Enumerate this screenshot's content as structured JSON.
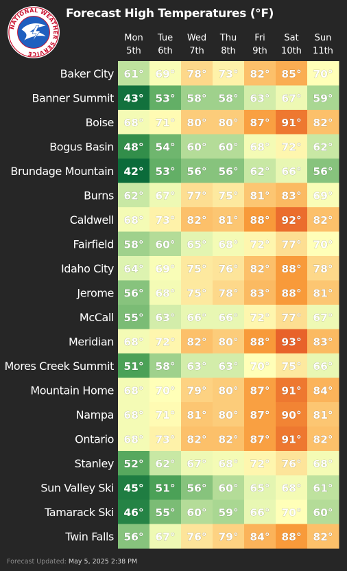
{
  "header": {
    "title": "Forecast High Temperatures (°F)",
    "logo_text": "NATIONAL WEATHER SERVICE"
  },
  "footer": {
    "label": "Forecast Updated:",
    "value": "May 5, 2025 2:38 PM"
  },
  "chart_data": {
    "type": "heatmap",
    "title": "Forecast High Temperatures (°F)",
    "unit": "°",
    "columns": [
      {
        "day": "Mon",
        "date": "5th"
      },
      {
        "day": "Tue",
        "date": "6th"
      },
      {
        "day": "Wed",
        "date": "7th"
      },
      {
        "day": "Thu",
        "date": "8th"
      },
      {
        "day": "Fri",
        "date": "9th"
      },
      {
        "day": "Sat",
        "date": "10th"
      },
      {
        "day": "Sun",
        "date": "11th"
      }
    ],
    "rows": [
      {
        "name": "Baker City",
        "values": [
          61,
          69,
          78,
          73,
          82,
          85,
          70
        ]
      },
      {
        "name": "Banner Summit",
        "values": [
          43,
          53,
          58,
          58,
          63,
          67,
          59
        ]
      },
      {
        "name": "Boise",
        "values": [
          68,
          71,
          80,
          80,
          87,
          91,
          82
        ]
      },
      {
        "name": "Bogus Basin",
        "values": [
          48,
          54,
          60,
          60,
          68,
          72,
          62
        ]
      },
      {
        "name": "Brundage Mountain",
        "values": [
          42,
          53,
          56,
          56,
          62,
          66,
          56
        ]
      },
      {
        "name": "Burns",
        "values": [
          62,
          67,
          77,
          75,
          81,
          83,
          69
        ]
      },
      {
        "name": "Caldwell",
        "values": [
          68,
          73,
          82,
          81,
          88,
          92,
          82
        ]
      },
      {
        "name": "Fairfield",
        "values": [
          58,
          60,
          65,
          68,
          72,
          77,
          70
        ]
      },
      {
        "name": "Idaho City",
        "values": [
          64,
          69,
          75,
          76,
          82,
          88,
          78
        ]
      },
      {
        "name": "Jerome",
        "values": [
          56,
          68,
          75,
          78,
          83,
          88,
          81
        ]
      },
      {
        "name": "McCall",
        "values": [
          55,
          63,
          66,
          66,
          72,
          77,
          67
        ]
      },
      {
        "name": "Meridian",
        "values": [
          68,
          72,
          82,
          80,
          88,
          93,
          83
        ]
      },
      {
        "name": "Mores Creek Summit",
        "values": [
          51,
          58,
          63,
          63,
          70,
          75,
          66
        ]
      },
      {
        "name": "Mountain Home",
        "values": [
          68,
          70,
          79,
          80,
          87,
          91,
          84
        ]
      },
      {
        "name": "Nampa",
        "values": [
          68,
          71,
          81,
          80,
          87,
          90,
          81
        ]
      },
      {
        "name": "Ontario",
        "values": [
          68,
          73,
          82,
          82,
          87,
          91,
          82
        ]
      },
      {
        "name": "Stanley",
        "values": [
          52,
          62,
          67,
          68,
          72,
          76,
          68
        ]
      },
      {
        "name": "Sun Valley Ski",
        "values": [
          45,
          51,
          56,
          60,
          65,
          68,
          61
        ]
      },
      {
        "name": "Tamarack Ski",
        "values": [
          46,
          55,
          60,
          59,
          66,
          70,
          60
        ]
      },
      {
        "name": "Twin Falls",
        "values": [
          56,
          67,
          76,
          79,
          84,
          88,
          82
        ]
      }
    ],
    "color_scale": {
      "stops": [
        {
          "value": 42,
          "color": "#0b6b3a"
        },
        {
          "value": 50,
          "color": "#3f9a4f"
        },
        {
          "value": 58,
          "color": "#9fd18c"
        },
        {
          "value": 64,
          "color": "#ddf3b0"
        },
        {
          "value": 70,
          "color": "#ffffb8"
        },
        {
          "value": 76,
          "color": "#fde49a"
        },
        {
          "value": 82,
          "color": "#fcc06a"
        },
        {
          "value": 88,
          "color": "#f89a3a"
        },
        {
          "value": 93,
          "color": "#e8622a"
        }
      ],
      "light_text_threshold": 45
    }
  }
}
